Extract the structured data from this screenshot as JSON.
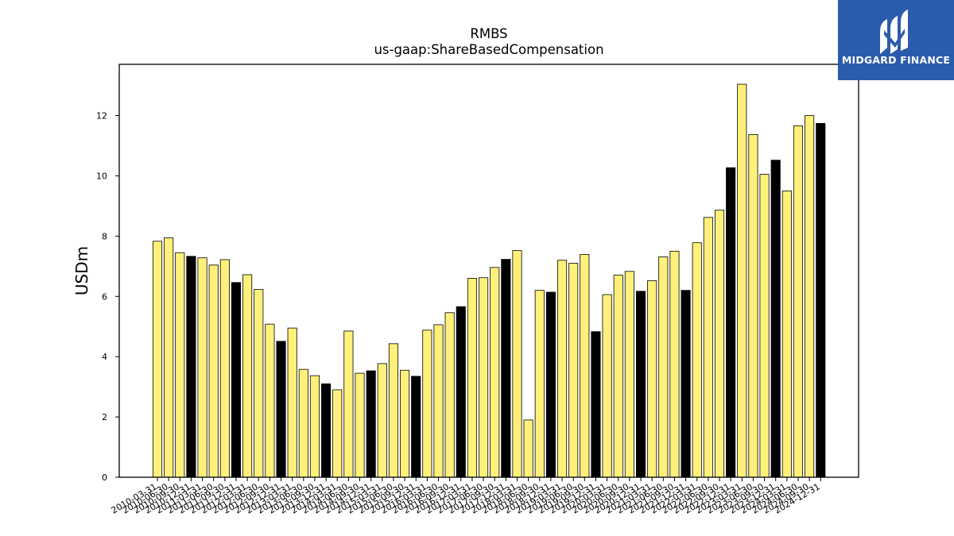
{
  "chart_data": {
    "type": "bar",
    "title": "RMBS",
    "subtitle": "us-gaap:ShareBasedCompensation",
    "xlabel": "",
    "ylabel": "USDm",
    "ylim": [
      0,
      13.7
    ],
    "yticks": [
      0,
      2,
      4,
      6,
      8,
      10,
      12
    ],
    "grid": false,
    "colors": {
      "quarter": "#fff07a",
      "fiscal_year": "#000000",
      "edge": "#000000"
    },
    "categories": [
      "2010-03-31",
      "2010-06-30",
      "2010-09-30",
      "2010-12-31",
      "2011-03-31",
      "2011-06-30",
      "2011-09-30",
      "2011-12-31",
      "2012-03-31",
      "2012-06-30",
      "2012-09-30",
      "2012-12-31",
      "2013-03-31",
      "2013-06-30",
      "2013-09-30",
      "2013-12-31",
      "2014-03-31",
      "2014-06-30",
      "2014-09-30",
      "2014-12-31",
      "2015-03-31",
      "2015-06-30",
      "2015-09-30",
      "2015-12-31",
      "2016-03-31",
      "2016-06-30",
      "2016-09-30",
      "2016-12-31",
      "2017-03-31",
      "2017-06-30",
      "2017-09-30",
      "2017-12-31",
      "2018-03-31",
      "2018-06-30",
      "2018-09-30",
      "2018-12-31",
      "2019-03-31",
      "2019-06-30",
      "2019-09-30",
      "2019-12-31",
      "2020-03-31",
      "2020-06-30",
      "2020-09-30",
      "2020-12-31",
      "2021-03-31",
      "2021-06-30",
      "2021-09-30",
      "2021-12-31",
      "2022-03-31",
      "2022-06-30",
      "2022-09-30",
      "2022-12-31",
      "2023-03-31",
      "2023-06-30",
      "2023-09-30",
      "2023-12-31",
      "2024-03-31",
      "2024-06-30",
      "2024-09-30",
      "2024-12-31"
    ],
    "values": [
      7.83,
      7.94,
      7.45,
      7.33,
      7.28,
      7.04,
      7.22,
      6.46,
      6.72,
      6.23,
      5.08,
      4.51,
      4.95,
      3.58,
      3.37,
      3.1,
      2.9,
      4.85,
      3.45,
      3.53,
      3.77,
      4.43,
      3.55,
      3.35,
      4.88,
      5.06,
      5.46,
      5.66,
      6.6,
      6.62,
      6.96,
      7.23,
      7.52,
      1.9,
      6.2,
      6.14,
      7.2,
      7.1,
      7.39,
      4.83,
      6.06,
      6.71,
      6.83,
      6.17,
      6.52,
      7.31,
      7.5,
      6.2,
      7.78,
      8.62,
      8.86,
      10.27,
      13.04,
      11.37,
      10.05,
      10.52,
      9.5,
      11.66,
      12.0,
      11.74
    ],
    "fiscal_year_end": [
      false,
      false,
      false,
      true,
      false,
      false,
      false,
      true,
      false,
      false,
      false,
      true,
      false,
      false,
      false,
      true,
      false,
      false,
      false,
      true,
      false,
      false,
      false,
      true,
      false,
      false,
      false,
      true,
      false,
      false,
      false,
      true,
      false,
      false,
      false,
      true,
      false,
      false,
      false,
      true,
      false,
      false,
      false,
      true,
      false,
      false,
      false,
      true,
      false,
      false,
      false,
      true,
      false,
      false,
      false,
      true,
      false,
      false,
      false,
      true
    ]
  },
  "logo": {
    "text": "MIDGARD FINANCE"
  }
}
